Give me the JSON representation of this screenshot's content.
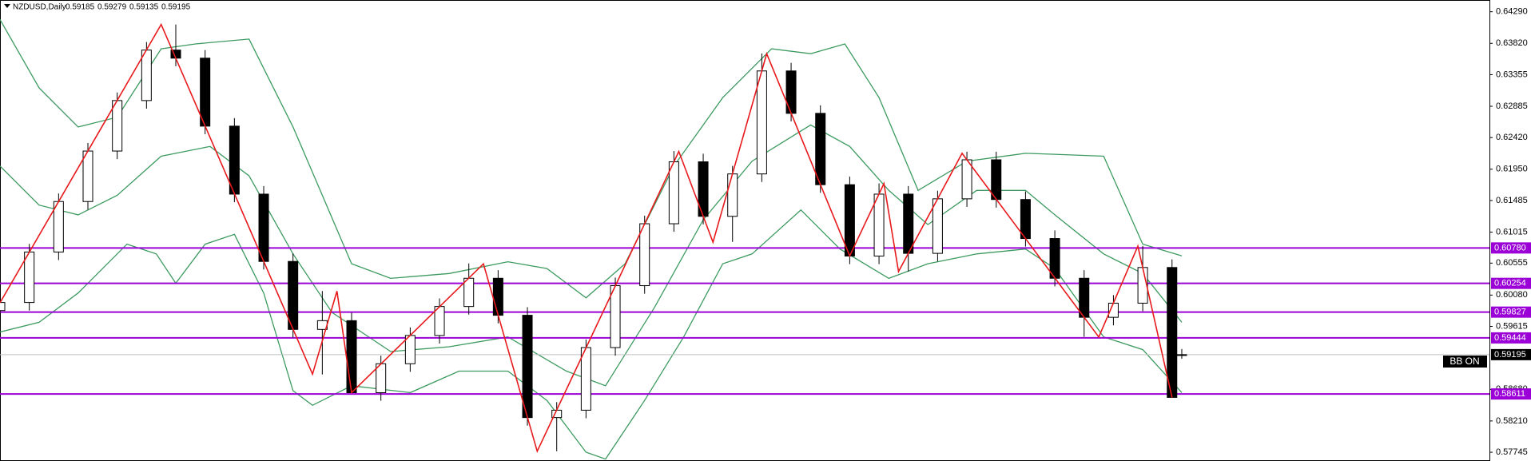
{
  "chart_data": {
    "type": "candlestick",
    "symbol": "NZDUSD,Daily",
    "bb_label": "BB ON",
    "xlim": [
      0,
      305
    ],
    "ylim": [
      0.57615,
      0.64464
    ],
    "yticks": [
      {
        "value": 0.6429,
        "label": "0.64290"
      },
      {
        "value": 0.6382,
        "label": "0.63820"
      },
      0.63355,
      0.62885,
      {
        "value": 0.6242,
        "label": "0.62420"
      },
      {
        "value": 0.6195,
        "label": "0.61950"
      },
      0.61485,
      0.61015,
      0.60555,
      {
        "value": 0.6008,
        "label": "0.60080"
      },
      0.59615,
      {
        "value": 0.5868,
        "label": "0.58680"
      },
      {
        "value": 0.5821,
        "label": "0.58210"
      },
      0.57745
    ],
    "up_color": "#ffffff",
    "down_color": "#000000",
    "x": [
      0,
      6,
      12,
      18,
      24,
      30,
      36,
      42,
      48,
      54,
      60,
      66,
      72,
      78,
      84,
      90,
      96,
      102,
      108,
      114,
      120,
      126,
      132,
      138,
      144,
      150,
      156,
      162,
      168,
      174,
      180,
      186,
      192,
      198,
      204,
      210,
      216,
      222,
      228,
      234,
      240,
      242
    ],
    "open": [
      0.5985,
      0.5997,
      0.6072,
      0.6147,
      0.6222,
      0.6297,
      0.6372,
      0.636,
      0.6259,
      0.6158,
      0.6058,
      0.5957,
      0.597,
      0.5863,
      0.5906,
      0.5948,
      0.5991,
      0.6033,
      0.5978,
      0.5826,
      0.5837,
      0.593,
      0.6022,
      0.6114,
      0.6206,
      0.6125,
      0.6188,
      0.6341,
      0.6278,
      0.6172,
      0.6066,
      0.6158,
      0.607,
      0.6151,
      0.6209,
      0.615,
      0.6092,
      0.6033,
      0.5975,
      0.5996,
      0.6049,
      0.59185
    ],
    "high": [
      0.6009,
      0.6084,
      0.6159,
      0.6234,
      0.6309,
      0.6384,
      0.641,
      0.6372,
      0.6271,
      0.617,
      0.607,
      0.6014,
      0.5982,
      0.5918,
      0.596,
      0.6003,
      0.6055,
      0.6045,
      0.599,
      0.5849,
      0.5942,
      0.6034,
      0.6126,
      0.6222,
      0.6218,
      0.62,
      0.6367,
      0.6353,
      0.629,
      0.6184,
      0.6174,
      0.617,
      0.6163,
      0.6221,
      0.6221,
      0.6162,
      0.6104,
      0.6045,
      0.6008,
      0.6081,
      0.6061,
      0.59279
    ],
    "low": [
      0.5973,
      0.5985,
      0.606,
      0.6135,
      0.621,
      0.6285,
      0.6348,
      0.6247,
      0.6146,
      0.6046,
      0.5945,
      0.589,
      0.5863,
      0.5851,
      0.5894,
      0.5936,
      0.5979,
      0.5966,
      0.5814,
      0.5776,
      0.5825,
      0.5918,
      0.601,
      0.6102,
      0.6113,
      0.6087,
      0.6176,
      0.6266,
      0.616,
      0.6054,
      0.6054,
      0.6043,
      0.6058,
      0.6139,
      0.6138,
      0.608,
      0.6021,
      0.5946,
      0.5963,
      0.5984,
      0.5856,
      0.59135
    ],
    "close": [
      0.5997,
      0.6072,
      0.6147,
      0.6222,
      0.6297,
      0.6372,
      0.636,
      0.6259,
      0.6158,
      0.6058,
      0.5957,
      0.597,
      0.5863,
      0.5906,
      0.5948,
      0.5991,
      0.6033,
      0.5978,
      0.5826,
      0.5837,
      0.593,
      0.6022,
      0.6114,
      0.6206,
      0.6125,
      0.6188,
      0.6341,
      0.6278,
      0.6172,
      0.6066,
      0.6158,
      0.607,
      0.6151,
      0.6209,
      0.615,
      0.6092,
      0.6033,
      0.5975,
      0.5996,
      0.6049,
      0.5856,
      0.59195
    ],
    "bands": {
      "color": "#3c9a5f",
      "series": [
        {
          "x": [
            0,
            8,
            16,
            24,
            33,
            40,
            51,
            55,
            60,
            66,
            72,
            80,
            92,
            104,
            112,
            120,
            128,
            138,
            148,
            158,
            166,
            173,
            180,
            188,
            198,
            210,
            216,
            226,
            234,
            242
          ],
          "values": [
            0.64174,
            0.63158,
            0.62578,
            0.62723,
            0.63739,
            0.63811,
            0.63884,
            0.63303,
            0.62578,
            0.61562,
            0.60546,
            0.60329,
            0.60401,
            0.60575,
            0.60474,
            0.60039,
            0.60546,
            0.61997,
            0.63013,
            0.63739,
            0.63666,
            0.63811,
            0.63013,
            0.61635,
            0.6207,
            0.62186,
            0.62172,
            0.62143,
            0.60837,
            0.60662
          ]
        },
        {
          "x": [
            0,
            8,
            16,
            24,
            33,
            43,
            51,
            60,
            68,
            80,
            92,
            104,
            116,
            124,
            134,
            144,
            154,
            166,
            174,
            182,
            190,
            200,
            210,
            216,
            226,
            234,
            242
          ],
          "values": [
            0.61997,
            0.61417,
            0.61272,
            0.61562,
            0.62143,
            0.62288,
            0.61852,
            0.60692,
            0.59821,
            0.59241,
            0.59313,
            0.59458,
            0.5895,
            0.58733,
            0.59893,
            0.61199,
            0.6207,
            0.62607,
            0.62288,
            0.61635,
            0.61127,
            0.61635,
            0.61635,
            0.61272,
            0.60692,
            0.60401,
            0.59676
          ]
        },
        {
          "x": [
            0,
            8,
            16,
            26,
            32,
            36,
            42,
            48,
            54,
            60,
            64,
            72,
            84,
            94,
            104,
            112,
            120,
            124,
            132,
            140,
            148,
            154,
            164,
            172,
            182,
            190,
            200,
            210,
            216,
            226,
            234,
            242
          ],
          "values": [
            0.59531,
            0.59676,
            0.60111,
            0.60837,
            0.60692,
            0.60256,
            0.60837,
            0.60982,
            0.60111,
            0.5866,
            0.58442,
            0.58733,
            0.58631,
            0.5895,
            0.5895,
            0.58515,
            0.57746,
            0.57644,
            0.58515,
            0.59458,
            0.60546,
            0.60692,
            0.61344,
            0.60764,
            0.60329,
            0.60546,
            0.60692,
            0.60764,
            0.60474,
            0.59458,
            0.5927,
            0.58631
          ]
        }
      ]
    },
    "zigzag": {
      "color": "#e8191c",
      "x": [
        0,
        33,
        64,
        69,
        72,
        99,
        110,
        139,
        146,
        157,
        174,
        181,
        184,
        197,
        225,
        233,
        240
      ],
      "values": [
        0.59965,
        0.64101,
        0.58905,
        0.60139,
        0.5863,
        0.60545,
        0.5776,
        0.62215,
        0.60865,
        0.63666,
        0.60662,
        0.61736,
        0.60429,
        0.62186,
        0.59457,
        0.60807,
        0.58557
      ]
    },
    "levels": {
      "color": "#9b00d6",
      "values": [
        {
          "value": 0.6078,
          "label": "0.60780"
        },
        0.60254,
        0.59827,
        0.59444,
        0.58611
      ]
    }
  }
}
